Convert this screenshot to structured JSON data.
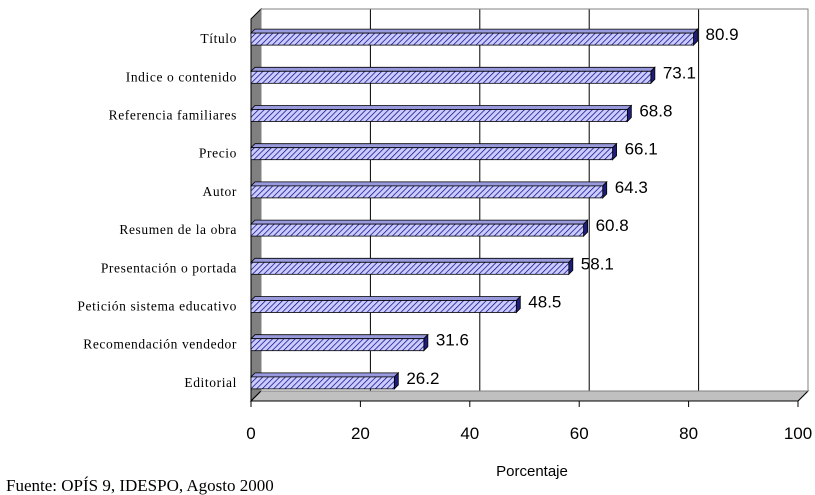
{
  "chart_data": {
    "type": "bar",
    "orientation": "horizontal",
    "categories": [
      "Título",
      "Indice o contenido",
      "Referencia familiares",
      "Precio",
      "Autor",
      "Resumen de la obra",
      "Presentación o portada",
      "Petición sistema educativo",
      "Recomendación vendedor",
      "Editorial"
    ],
    "values": [
      80.9,
      73.1,
      68.8,
      66.1,
      64.3,
      60.8,
      58.1,
      48.5,
      31.6,
      26.2
    ],
    "value_labels": [
      "80.9",
      "73.1",
      "68.8",
      "66.1",
      "64.3",
      "60.8",
      "58.1",
      "48.5",
      "31.6",
      "26.2"
    ],
    "xlabel": "Porcentaje",
    "xlim": [
      0,
      100
    ],
    "xticks": [
      0,
      20,
      40,
      60,
      80,
      100
    ],
    "xtick_labels": [
      "0",
      "20",
      "40",
      "60",
      "80",
      "100"
    ],
    "grid": true,
    "style": "3d-hatched",
    "colors": {
      "bar_fill": "#ccccff",
      "bar_hatch": "#000080",
      "bar_top": "#9999dd",
      "bar_side": "#1e1e7a",
      "wall": "#808080",
      "floor": "#c0c0c0",
      "grid": "#000000"
    }
  },
  "source_note": "Fuente: OPÍS 9, IDESPO, Agosto 2000"
}
